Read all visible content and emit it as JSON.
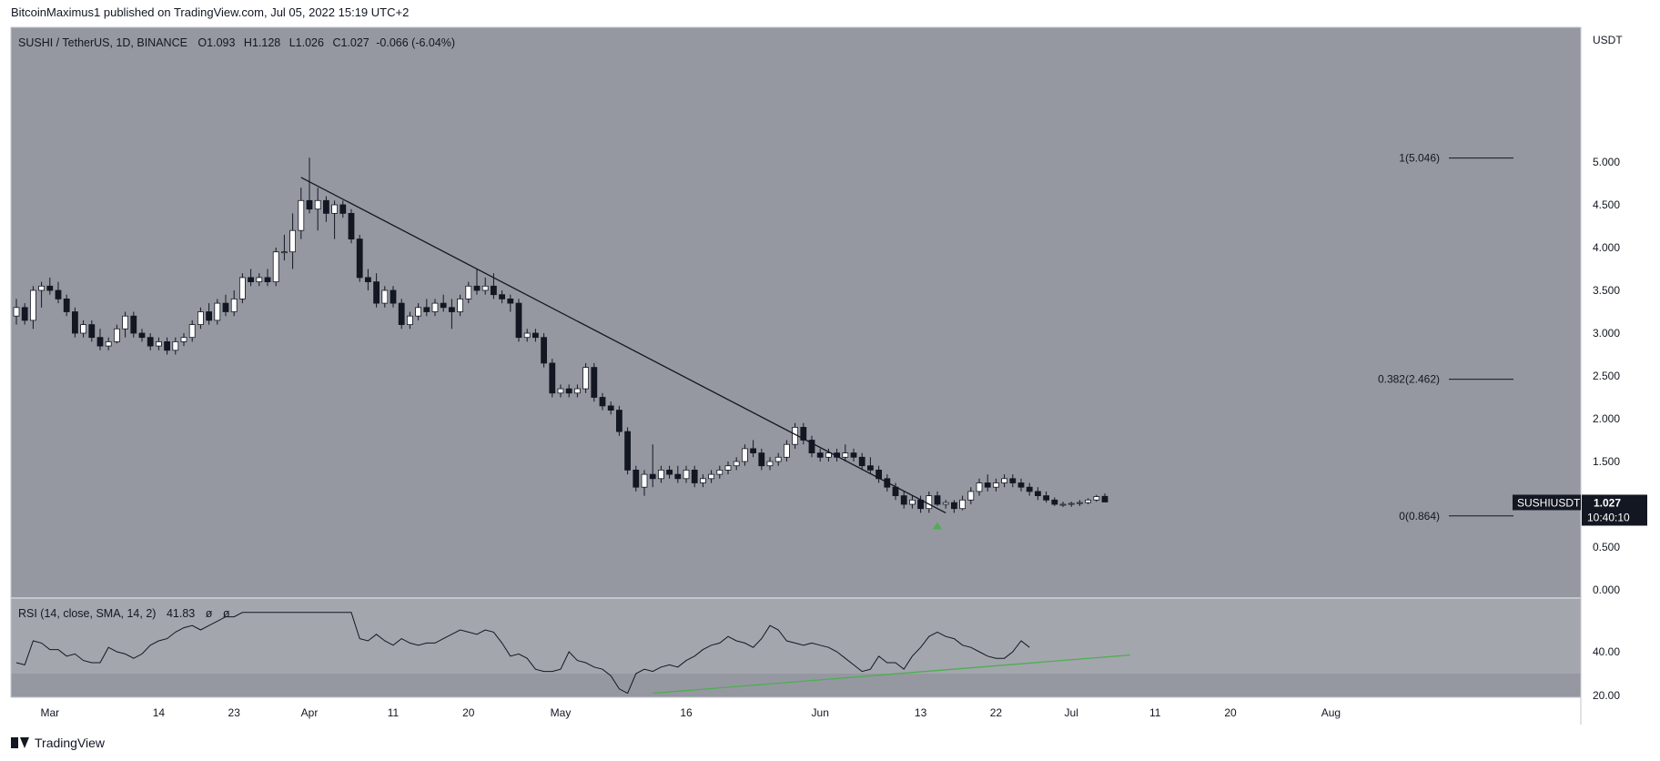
{
  "header": {
    "publisher_line": "BitcoinMaximus1 published on TradingView.com, Jul 05, 2022 15:19 UTC+2"
  },
  "footer": {
    "brand": "TradingView"
  },
  "legend": {
    "symbol": "SUSHI / TetherUS, 1D, BINANCE",
    "o_label": "O",
    "o_value": "1.093",
    "h_label": "H",
    "h_value": "1.128",
    "l_label": "L",
    "l_value": "1.026",
    "c_label": "C",
    "c_value": "1.027",
    "change": "-0.066 (-6.04%)"
  },
  "price_axis": {
    "currency": "USDT",
    "ticks": [
      "5.000",
      "4.500",
      "4.000",
      "3.500",
      "3.000",
      "2.500",
      "2.000",
      "1.500",
      "1.000",
      "0.500",
      "0.000"
    ],
    "last_symbol": "SUSHIUSDT",
    "last_price": "1.027",
    "countdown": "10:40:10"
  },
  "rsi_panel": {
    "label": "RSI (14, close, SMA, 14, 2)",
    "value": "41.83",
    "extra1": "ø",
    "extra2": "ø",
    "ticks": [
      "40.00",
      "20.00"
    ]
  },
  "time_axis": {
    "labels": [
      "Mar",
      "14",
      "23",
      "Apr",
      "11",
      "20",
      "May",
      "16",
      "Jun",
      "13",
      "22",
      "Jul",
      "11",
      "20",
      "Aug"
    ]
  },
  "fib_levels": [
    {
      "label": "1(5.046)",
      "value": 5.046
    },
    {
      "label": "0.382(2.462)",
      "value": 2.462
    },
    {
      "label": "0(0.864)",
      "value": 0.864
    }
  ],
  "colors": {
    "chart_bg": "#9598a1",
    "rsi_bg": "#a3a6ad",
    "rsi_band": "#9598a1",
    "bull": "#ffffff",
    "bear": "#131722",
    "rsi_trend": "#4caf50",
    "signal_arrow": "#4caf50",
    "panel_border": "#c4c6cc"
  },
  "chart_data": {
    "type": "candlestick",
    "title": "SUSHI / TetherUS, 1D, BINANCE",
    "y_unit": "USDT",
    "ylim": [
      0,
      5.75
    ],
    "x_start": "2022-02-25",
    "candles": [
      [
        "2022-02-25",
        3.2,
        3.4,
        3.1,
        3.3
      ],
      [
        "2022-02-26",
        3.3,
        3.35,
        3.1,
        3.15
      ],
      [
        "2022-02-27",
        3.15,
        3.55,
        3.05,
        3.5
      ],
      [
        "2022-02-28",
        3.5,
        3.6,
        3.3,
        3.55
      ],
      [
        "2022-03-01",
        3.55,
        3.65,
        3.45,
        3.5
      ],
      [
        "2022-03-02",
        3.5,
        3.6,
        3.35,
        3.4
      ],
      [
        "2022-03-03",
        3.4,
        3.45,
        3.2,
        3.25
      ],
      [
        "2022-03-04",
        3.25,
        3.3,
        2.95,
        3.0
      ],
      [
        "2022-03-05",
        3.0,
        3.15,
        2.95,
        3.1
      ],
      [
        "2022-03-06",
        3.1,
        3.15,
        2.9,
        2.95
      ],
      [
        "2022-03-07",
        2.95,
        3.05,
        2.8,
        2.85
      ],
      [
        "2022-03-08",
        2.85,
        2.95,
        2.8,
        2.9
      ],
      [
        "2022-03-09",
        2.9,
        3.1,
        2.88,
        3.05
      ],
      [
        "2022-03-10",
        3.05,
        3.25,
        2.95,
        3.2
      ],
      [
        "2022-03-11",
        3.2,
        3.25,
        2.95,
        3.0
      ],
      [
        "2022-03-12",
        3.0,
        3.05,
        2.9,
        2.95
      ],
      [
        "2022-03-13",
        2.95,
        3.0,
        2.8,
        2.85
      ],
      [
        "2022-03-14",
        2.85,
        2.95,
        2.8,
        2.9
      ],
      [
        "2022-03-15",
        2.9,
        2.95,
        2.75,
        2.8
      ],
      [
        "2022-03-16",
        2.8,
        2.95,
        2.75,
        2.9
      ],
      [
        "2022-03-17",
        2.9,
        3.0,
        2.85,
        2.95
      ],
      [
        "2022-03-18",
        2.95,
        3.15,
        2.9,
        3.1
      ],
      [
        "2022-03-19",
        3.1,
        3.3,
        3.05,
        3.25
      ],
      [
        "2022-03-20",
        3.25,
        3.35,
        3.1,
        3.15
      ],
      [
        "2022-03-21",
        3.15,
        3.4,
        3.1,
        3.35
      ],
      [
        "2022-03-22",
        3.35,
        3.45,
        3.2,
        3.25
      ],
      [
        "2022-03-23",
        3.25,
        3.5,
        3.2,
        3.4
      ],
      [
        "2022-03-24",
        3.4,
        3.7,
        3.35,
        3.65
      ],
      [
        "2022-03-25",
        3.65,
        3.75,
        3.55,
        3.6
      ],
      [
        "2022-03-26",
        3.6,
        3.7,
        3.55,
        3.65
      ],
      [
        "2022-03-27",
        3.65,
        3.75,
        3.55,
        3.6
      ],
      [
        "2022-03-28",
        3.6,
        4.0,
        3.55,
        3.95
      ],
      [
        "2022-03-29",
        3.95,
        4.15,
        3.85,
        3.95
      ],
      [
        "2022-03-30",
        3.95,
        4.4,
        3.75,
        4.2
      ],
      [
        "2022-03-31",
        4.2,
        4.7,
        4.1,
        4.55
      ],
      [
        "2022-04-01",
        4.55,
        5.05,
        4.4,
        4.45
      ],
      [
        "2022-04-02",
        4.45,
        4.7,
        4.2,
        4.55
      ],
      [
        "2022-04-03",
        4.55,
        4.6,
        4.3,
        4.4
      ],
      [
        "2022-04-04",
        4.4,
        4.55,
        4.1,
        4.5
      ],
      [
        "2022-04-05",
        4.5,
        4.55,
        4.35,
        4.4
      ],
      [
        "2022-04-06",
        4.4,
        4.45,
        4.05,
        4.1
      ],
      [
        "2022-04-07",
        4.1,
        4.15,
        3.6,
        3.65
      ],
      [
        "2022-04-08",
        3.65,
        3.75,
        3.5,
        3.6
      ],
      [
        "2022-04-09",
        3.6,
        3.7,
        3.3,
        3.35
      ],
      [
        "2022-04-10",
        3.35,
        3.55,
        3.3,
        3.5
      ],
      [
        "2022-04-11",
        3.5,
        3.55,
        3.3,
        3.35
      ],
      [
        "2022-04-12",
        3.35,
        3.4,
        3.05,
        3.1
      ],
      [
        "2022-04-13",
        3.1,
        3.25,
        3.05,
        3.2
      ],
      [
        "2022-04-14",
        3.2,
        3.35,
        3.15,
        3.3
      ],
      [
        "2022-04-15",
        3.3,
        3.4,
        3.2,
        3.25
      ],
      [
        "2022-04-16",
        3.25,
        3.4,
        3.2,
        3.35
      ],
      [
        "2022-04-17",
        3.35,
        3.45,
        3.25,
        3.3
      ],
      [
        "2022-04-18",
        3.3,
        3.4,
        3.05,
        3.25
      ],
      [
        "2022-04-19",
        3.25,
        3.45,
        3.2,
        3.4
      ],
      [
        "2022-04-20",
        3.4,
        3.6,
        3.35,
        3.55
      ],
      [
        "2022-04-21",
        3.55,
        3.75,
        3.45,
        3.5
      ],
      [
        "2022-04-22",
        3.5,
        3.65,
        3.45,
        3.55
      ],
      [
        "2022-04-23",
        3.55,
        3.7,
        3.4,
        3.45
      ],
      [
        "2022-04-24",
        3.45,
        3.5,
        3.35,
        3.4
      ],
      [
        "2022-04-25",
        3.4,
        3.45,
        3.25,
        3.35
      ],
      [
        "2022-04-26",
        3.35,
        3.4,
        2.9,
        2.95
      ],
      [
        "2022-04-27",
        2.95,
        3.05,
        2.9,
        3.0
      ],
      [
        "2022-04-28",
        3.0,
        3.05,
        2.9,
        2.95
      ],
      [
        "2022-04-29",
        2.95,
        3.0,
        2.6,
        2.65
      ],
      [
        "2022-04-30",
        2.65,
        2.7,
        2.25,
        2.3
      ],
      [
        "2022-05-01",
        2.3,
        2.4,
        2.25,
        2.35
      ],
      [
        "2022-05-02",
        2.35,
        2.4,
        2.25,
        2.3
      ],
      [
        "2022-05-03",
        2.3,
        2.4,
        2.25,
        2.35
      ],
      [
        "2022-05-04",
        2.35,
        2.65,
        2.3,
        2.6
      ],
      [
        "2022-05-05",
        2.6,
        2.65,
        2.2,
        2.25
      ],
      [
        "2022-05-06",
        2.25,
        2.3,
        2.1,
        2.15
      ],
      [
        "2022-05-07",
        2.15,
        2.2,
        2.05,
        2.1
      ],
      [
        "2022-05-08",
        2.1,
        2.15,
        1.8,
        1.85
      ],
      [
        "2022-05-09",
        1.85,
        1.9,
        1.35,
        1.4
      ],
      [
        "2022-05-10",
        1.4,
        1.45,
        1.15,
        1.2
      ],
      [
        "2022-05-11",
        1.2,
        1.4,
        1.1,
        1.35
      ],
      [
        "2022-05-12",
        1.35,
        1.7,
        1.2,
        1.3
      ],
      [
        "2022-05-13",
        1.3,
        1.45,
        1.25,
        1.4
      ],
      [
        "2022-05-14",
        1.4,
        1.45,
        1.3,
        1.35
      ],
      [
        "2022-05-15",
        1.35,
        1.45,
        1.25,
        1.3
      ],
      [
        "2022-05-16",
        1.3,
        1.45,
        1.25,
        1.4
      ],
      [
        "2022-05-17",
        1.4,
        1.45,
        1.2,
        1.25
      ],
      [
        "2022-05-18",
        1.25,
        1.35,
        1.2,
        1.3
      ],
      [
        "2022-05-19",
        1.3,
        1.4,
        1.25,
        1.35
      ],
      [
        "2022-05-20",
        1.35,
        1.45,
        1.3,
        1.4
      ],
      [
        "2022-05-21",
        1.4,
        1.5,
        1.35,
        1.45
      ],
      [
        "2022-05-22",
        1.45,
        1.55,
        1.4,
        1.5
      ],
      [
        "2022-05-23",
        1.5,
        1.7,
        1.45,
        1.65
      ],
      [
        "2022-05-24",
        1.65,
        1.75,
        1.55,
        1.6
      ],
      [
        "2022-05-25",
        1.6,
        1.65,
        1.4,
        1.45
      ],
      [
        "2022-05-26",
        1.45,
        1.55,
        1.4,
        1.5
      ],
      [
        "2022-05-27",
        1.5,
        1.6,
        1.45,
        1.55
      ],
      [
        "2022-05-28",
        1.55,
        1.75,
        1.5,
        1.7
      ],
      [
        "2022-05-29",
        1.7,
        1.95,
        1.65,
        1.9
      ],
      [
        "2022-05-30",
        1.9,
        1.95,
        1.7,
        1.75
      ],
      [
        "2022-05-31",
        1.75,
        1.8,
        1.55,
        1.6
      ],
      [
        "2022-06-01",
        1.6,
        1.65,
        1.5,
        1.55
      ],
      [
        "2022-06-02",
        1.55,
        1.65,
        1.5,
        1.6
      ],
      [
        "2022-06-03",
        1.6,
        1.65,
        1.5,
        1.55
      ],
      [
        "2022-06-04",
        1.55,
        1.7,
        1.5,
        1.6
      ],
      [
        "2022-06-05",
        1.6,
        1.65,
        1.5,
        1.55
      ],
      [
        "2022-06-06",
        1.55,
        1.6,
        1.4,
        1.45
      ],
      [
        "2022-06-07",
        1.45,
        1.55,
        1.35,
        1.4
      ],
      [
        "2022-06-08",
        1.4,
        1.45,
        1.25,
        1.3
      ],
      [
        "2022-06-09",
        1.3,
        1.35,
        1.15,
        1.2
      ],
      [
        "2022-06-10",
        1.2,
        1.25,
        1.05,
        1.1
      ],
      [
        "2022-06-11",
        1.1,
        1.15,
        0.95,
        1.0
      ],
      [
        "2022-06-12",
        1.0,
        1.1,
        0.95,
        1.05
      ],
      [
        "2022-06-13",
        1.05,
        1.1,
        0.9,
        0.95
      ],
      [
        "2022-06-14",
        0.95,
        1.15,
        0.9,
        1.1
      ],
      [
        "2022-06-15",
        1.1,
        1.15,
        0.98,
        1.0
      ],
      [
        "2022-06-16",
        1.0,
        1.05,
        0.95,
        1.02
      ],
      [
        "2022-06-17",
        1.02,
        1.05,
        0.9,
        0.95
      ],
      [
        "2022-06-18",
        0.95,
        1.1,
        0.93,
        1.05
      ],
      [
        "2022-06-19",
        1.05,
        1.2,
        1.0,
        1.15
      ],
      [
        "2022-06-20",
        1.15,
        1.3,
        1.1,
        1.25
      ],
      [
        "2022-06-21",
        1.25,
        1.35,
        1.15,
        1.2
      ],
      [
        "2022-06-22",
        1.2,
        1.3,
        1.15,
        1.25
      ],
      [
        "2022-06-23",
        1.25,
        1.35,
        1.2,
        1.3
      ],
      [
        "2022-06-24",
        1.3,
        1.35,
        1.2,
        1.25
      ],
      [
        "2022-06-25",
        1.25,
        1.3,
        1.15,
        1.2
      ],
      [
        "2022-06-26",
        1.2,
        1.25,
        1.1,
        1.15
      ],
      [
        "2022-06-27",
        1.15,
        1.2,
        1.05,
        1.1
      ],
      [
        "2022-06-28",
        1.1,
        1.15,
        1.02,
        1.05
      ],
      [
        "2022-06-29",
        1.05,
        1.08,
        0.98,
        1.0
      ],
      [
        "2022-06-30",
        1.0,
        1.03,
        0.97,
        1.0
      ],
      [
        "2022-07-01",
        1.0,
        1.03,
        0.97,
        1.01
      ],
      [
        "2022-07-02",
        1.01,
        1.05,
        0.98,
        1.02
      ],
      [
        "2022-07-03",
        1.02,
        1.07,
        1.0,
        1.05
      ],
      [
        "2022-07-04",
        1.05,
        1.11,
        1.03,
        1.09
      ],
      [
        "2022-07-05",
        1.093,
        1.128,
        1.026,
        1.027
      ]
    ],
    "trendline": [
      [
        "2022-03-31",
        4.82
      ],
      [
        "2022-06-16",
        0.9
      ]
    ],
    "signal_marker": {
      "date": "2022-06-15",
      "value": 0.75
    },
    "rsi": {
      "ylim": [
        15,
        58
      ],
      "band": [
        30,
        70
      ],
      "values": [
        35,
        34,
        45,
        44,
        41,
        41,
        38,
        39,
        36,
        35,
        35,
        42,
        40,
        39,
        37,
        39,
        43,
        45,
        46,
        49,
        51,
        52,
        50,
        52,
        54,
        56,
        56,
        58,
        58,
        58,
        58,
        58,
        58,
        58,
        58,
        58,
        58,
        58,
        58,
        58,
        58,
        46,
        45,
        48,
        45,
        43,
        46,
        44,
        43,
        44,
        44,
        46,
        48,
        50,
        49,
        48,
        50,
        49,
        44,
        38,
        39,
        37,
        32,
        31,
        31,
        32,
        40,
        36,
        35,
        33,
        32,
        29,
        23,
        21,
        30,
        32,
        31,
        33,
        34,
        33,
        36,
        38,
        41,
        43,
        44,
        47,
        45,
        44,
        42,
        46,
        52,
        50,
        45,
        44,
        43,
        44,
        43,
        42,
        40,
        37,
        34,
        31,
        32,
        38,
        35,
        35,
        32,
        38,
        42,
        47,
        49,
        47,
        46,
        43,
        42,
        40,
        38,
        37,
        37,
        40,
        45,
        42
      ],
      "trendline": [
        [
          "2022-05-12",
          21
        ],
        [
          "2022-07-08",
          38.5
        ]
      ],
      "last": 41.83
    }
  }
}
